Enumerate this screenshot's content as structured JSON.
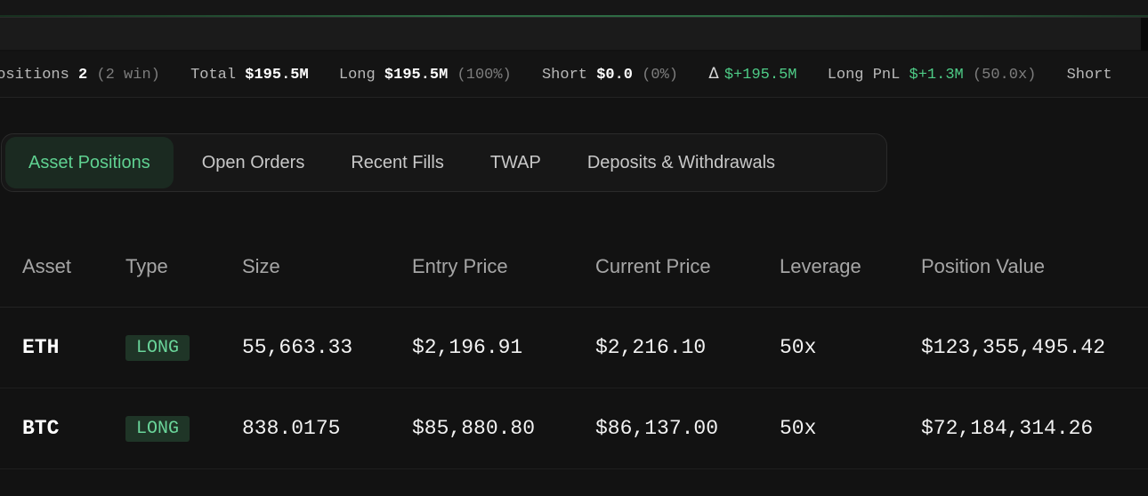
{
  "stats": [
    {
      "label": "Positions",
      "value": "2",
      "sub": "(2 win)"
    },
    {
      "label": "Total",
      "value": "$195.5M",
      "sub": ""
    },
    {
      "label": "Long",
      "value": "$195.5M",
      "sub": "(100%)"
    },
    {
      "label": "Short",
      "value": "$0.0",
      "sub": "(0%)"
    },
    {
      "label": "Δ",
      "value": "$+195.5M",
      "sub": ""
    },
    {
      "label": "Long PnL",
      "value": "$+1.3M",
      "sub": "(50.0x)"
    },
    {
      "label": "Short",
      "value": "",
      "sub": ""
    }
  ],
  "tabs": [
    "Asset Positions",
    "Open Orders",
    "Recent Fills",
    "TWAP",
    "Deposits & Withdrawals"
  ],
  "table": {
    "headers": [
      "Asset",
      "Type",
      "Size",
      "Entry Price",
      "Current Price",
      "Leverage",
      "Position Value"
    ],
    "rows": [
      {
        "asset": "ETH",
        "type": "LONG",
        "size": "55,663.33",
        "entry": "$2,196.91",
        "current": "$2,216.10",
        "leverage": "50x",
        "value": "$123,355,495.42"
      },
      {
        "asset": "BTC",
        "type": "LONG",
        "size": "838.0175",
        "entry": "$85,880.80",
        "current": "$86,137.00",
        "leverage": "50x",
        "value": "$72,184,314.26"
      }
    ]
  },
  "colors": {
    "accent_green": "#5fd191",
    "badge_bg": "#1f3527",
    "background": "#121212"
  }
}
